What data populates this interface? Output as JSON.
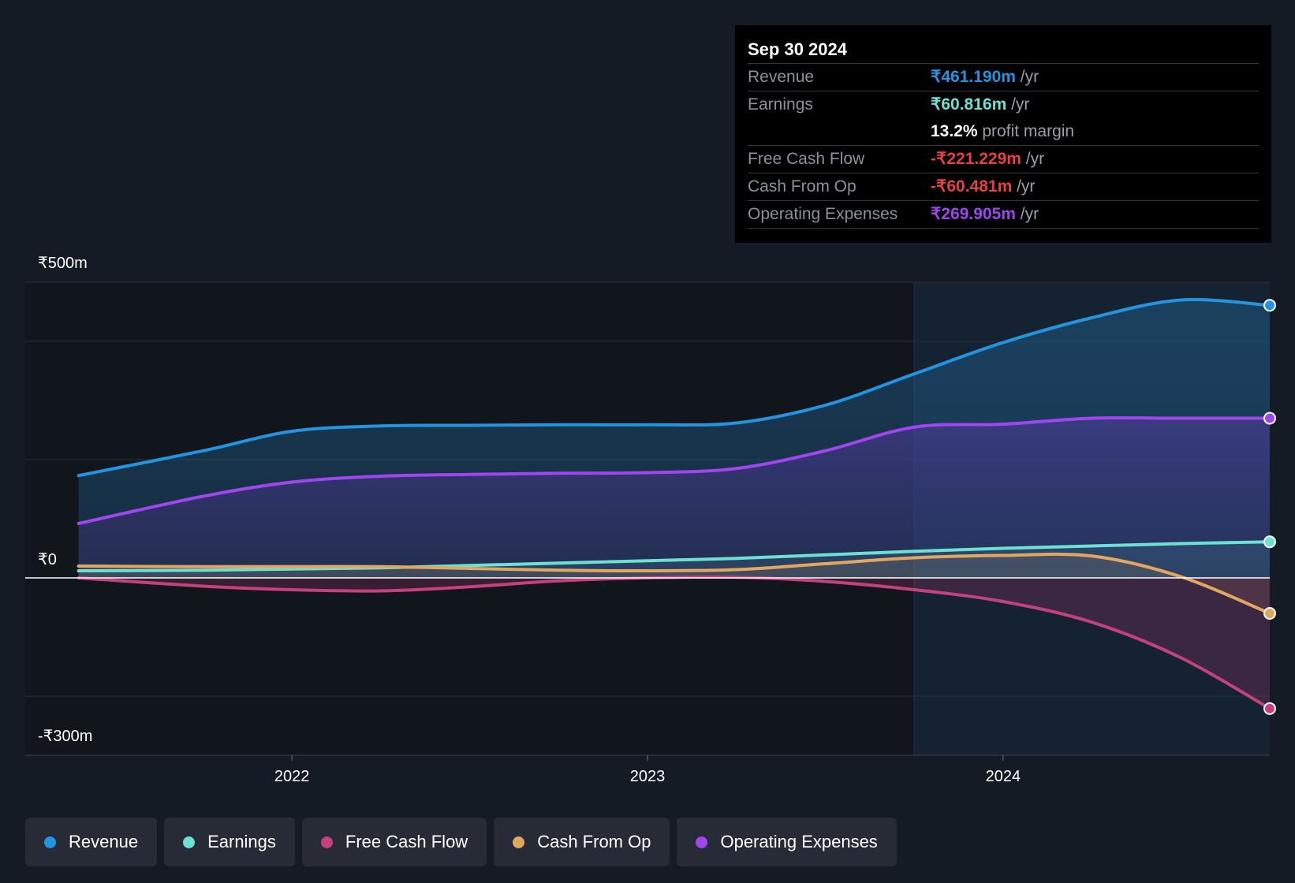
{
  "tooltip": {
    "date": "Sep 30 2024",
    "rows": [
      {
        "label": "Revenue",
        "value": "₹461.190m",
        "unit": " /yr",
        "color": "#2394df"
      },
      {
        "label": "Earnings",
        "value": "₹60.816m",
        "unit": " /yr",
        "color": "#6ce1d3"
      },
      {
        "label": "",
        "value": "13.2%",
        "unit": " profit margin",
        "color": "#ffffff"
      },
      {
        "label": "Free Cash Flow",
        "value": "-₹221.229m",
        "unit": " /yr",
        "color": "#e64141"
      },
      {
        "label": "Cash From Op",
        "value": "-₹60.481m",
        "unit": " /yr",
        "color": "#e64141"
      },
      {
        "label": "Operating Expenses",
        "value": "₹269.905m",
        "unit": " /yr",
        "color": "#a045ef"
      }
    ]
  },
  "legend": [
    {
      "label": "Revenue",
      "color": "#2394df"
    },
    {
      "label": "Earnings",
      "color": "#6ce1d3"
    },
    {
      "label": "Free Cash Flow",
      "color": "#c4417e"
    },
    {
      "label": "Cash From Op",
      "color": "#e3a65e"
    },
    {
      "label": "Operating Expenses",
      "color": "#a045ef"
    }
  ],
  "chart_data": {
    "type": "area",
    "ylabels": {
      "top": "₹500m",
      "zero": "₹0",
      "bottom": "-₹300m"
    },
    "ylim": [
      -300,
      500
    ],
    "xlim": [
      2021.25,
      2024.75
    ],
    "x_ticks": [
      2022,
      2023,
      2024
    ],
    "x_tick_labels": [
      "2022",
      "2023",
      "2024"
    ],
    "highlight_start": 2023.75,
    "series": [
      {
        "name": "Revenue",
        "color": "#2394df",
        "x": [
          2021.4,
          2021.75,
          2022.0,
          2022.25,
          2022.5,
          2022.75,
          2023.0,
          2023.25,
          2023.5,
          2023.75,
          2024.0,
          2024.25,
          2024.5,
          2024.75
        ],
        "values": [
          173,
          215,
          248,
          257,
          258,
          259,
          259,
          262,
          292,
          345,
          398,
          440,
          470,
          461
        ]
      },
      {
        "name": "Operating Expenses",
        "color": "#a045ef",
        "x": [
          2021.4,
          2021.75,
          2022.0,
          2022.25,
          2022.5,
          2022.75,
          2023.0,
          2023.25,
          2023.5,
          2023.75,
          2024.0,
          2024.25,
          2024.5,
          2024.75
        ],
        "values": [
          92,
          138,
          162,
          172,
          175,
          177,
          178,
          185,
          215,
          255,
          260,
          270,
          270,
          270
        ]
      },
      {
        "name": "Earnings",
        "color": "#6ce1d3",
        "x": [
          2021.4,
          2021.75,
          2022.0,
          2022.25,
          2022.5,
          2022.75,
          2023.0,
          2023.25,
          2023.5,
          2023.75,
          2024.0,
          2024.25,
          2024.5,
          2024.75
        ],
        "values": [
          12,
          13,
          15,
          17,
          21,
          25,
          29,
          33,
          39,
          45,
          50,
          54,
          58,
          61
        ]
      },
      {
        "name": "Cash From Op",
        "color": "#e3a65e",
        "x": [
          2021.4,
          2021.75,
          2022.0,
          2022.25,
          2022.5,
          2022.75,
          2023.0,
          2023.25,
          2023.5,
          2023.75,
          2024.0,
          2024.25,
          2024.5,
          2024.75
        ],
        "values": [
          20,
          19,
          19,
          19,
          16,
          13,
          12,
          14,
          24,
          34,
          38,
          37,
          2,
          -60
        ]
      },
      {
        "name": "Free Cash Flow",
        "color": "#c4417e",
        "x": [
          2021.4,
          2021.75,
          2022.0,
          2022.25,
          2022.5,
          2022.75,
          2023.0,
          2023.25,
          2023.5,
          2023.75,
          2024.0,
          2024.25,
          2024.5,
          2024.75
        ],
        "values": [
          0,
          -14,
          -20,
          -22,
          -15,
          -5,
          0,
          1,
          -6,
          -20,
          -40,
          -75,
          -135,
          -221
        ]
      }
    ]
  }
}
